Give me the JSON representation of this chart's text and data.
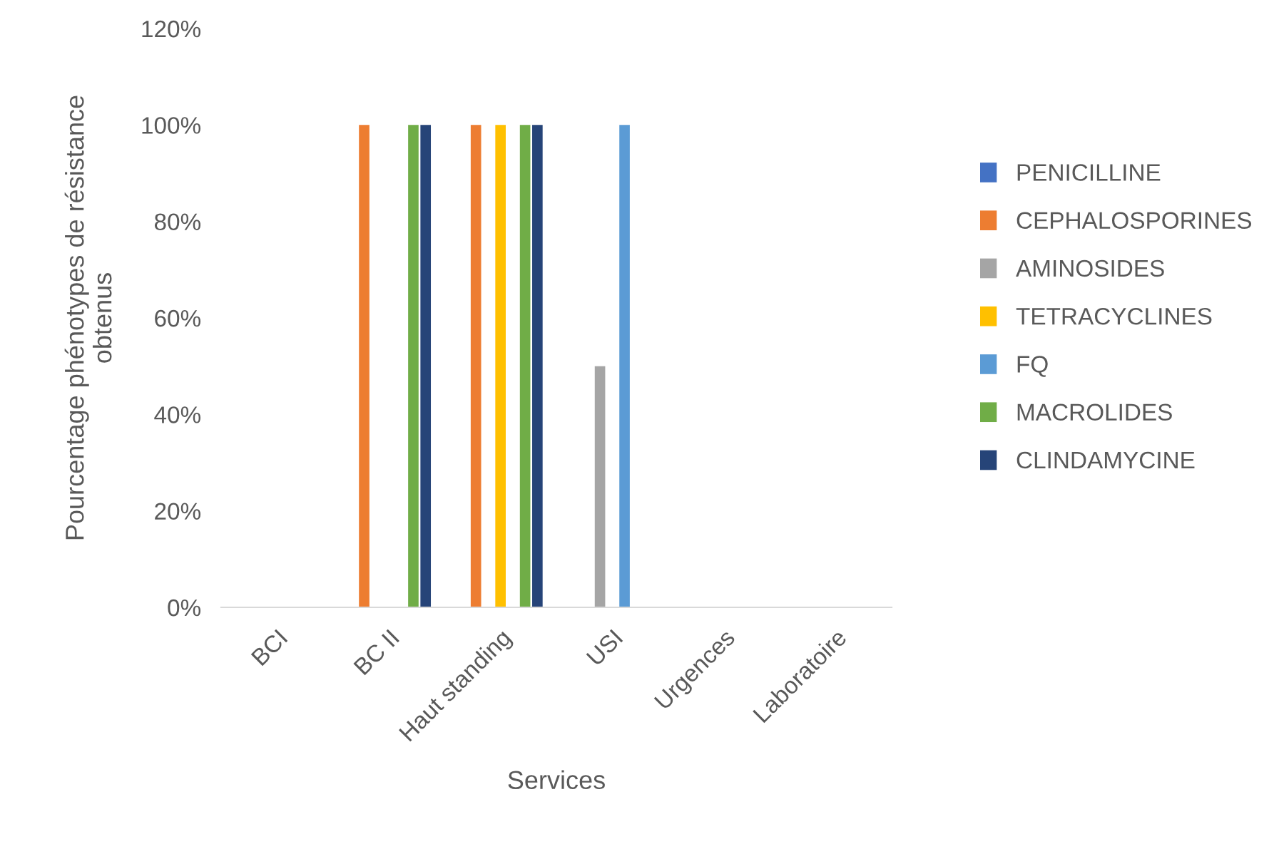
{
  "chart_data": {
    "type": "bar",
    "xlabel": "Services",
    "ylabel": "Pourcentage phénotypes de résistance\nobtenus",
    "categories": [
      "BCI",
      "BC II",
      "Haut standing",
      "USI",
      "Urgences",
      "Laboratoire"
    ],
    "series": [
      {
        "name": "PENICILLINE",
        "color": "#4472c4",
        "values": [
          0,
          0,
          0,
          0,
          0,
          0
        ]
      },
      {
        "name": "CEPHALOSPORINES",
        "color": "#ed7d31",
        "values": [
          0,
          100,
          100,
          0,
          0,
          0
        ]
      },
      {
        "name": "AMINOSIDES",
        "color": "#a5a5a5",
        "values": [
          0,
          0,
          0,
          50,
          0,
          0
        ]
      },
      {
        "name": "TETRACYCLINES",
        "color": "#ffc000",
        "values": [
          0,
          0,
          100,
          0,
          0,
          0
        ]
      },
      {
        "name": "FQ",
        "color": "#5b9bd5",
        "values": [
          0,
          0,
          0,
          100,
          0,
          0
        ]
      },
      {
        "name": "MACROLIDES",
        "color": "#70ad47",
        "values": [
          0,
          100,
          100,
          0,
          0,
          0
        ]
      },
      {
        "name": "CLINDAMYCINE",
        "color": "#264478",
        "values": [
          0,
          100,
          100,
          0,
          0,
          0
        ]
      }
    ],
    "ylim": [
      0,
      120
    ],
    "yticks": [
      {
        "value": 0,
        "label": "0%"
      },
      {
        "value": 20,
        "label": "20%"
      },
      {
        "value": 40,
        "label": "40%"
      },
      {
        "value": 60,
        "label": "60%"
      },
      {
        "value": 80,
        "label": "80%"
      },
      {
        "value": 100,
        "label": "100%"
      },
      {
        "value": 120,
        "label": "120%"
      }
    ],
    "grid": false,
    "legend": "right"
  }
}
